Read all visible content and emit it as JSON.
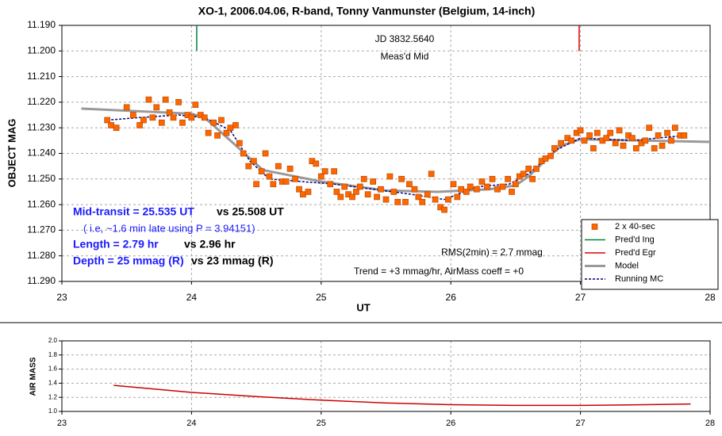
{
  "chart_data": [
    {
      "type": "scatter",
      "title": "XO-1, 2006.04.06, R-band, Tonny Vanmunster (Belgium, 14-inch)",
      "xlabel": "UT",
      "ylabel": "OBJECT MAG",
      "xlim": [
        23,
        28
      ],
      "ylim": [
        11.19,
        11.29
      ],
      "y_inverted": true,
      "xticks": [
        23,
        24,
        25,
        26,
        27,
        28
      ],
      "yticks": [
        {
          "value": 11.19,
          "label": "11.190"
        },
        {
          "value": 11.2,
          "label": "11.200"
        },
        {
          "value": 11.21,
          "label": "11.210"
        },
        {
          "value": 11.22,
          "label": "11.220"
        },
        {
          "value": 11.23,
          "label": "11.230"
        },
        {
          "value": 11.24,
          "label": "11.240"
        },
        {
          "value": 11.25,
          "label": "11.250"
        },
        {
          "value": 11.26,
          "label": "11.260"
        },
        {
          "value": 11.27,
          "label": "11.270"
        },
        {
          "value": 11.28,
          "label": "11.280"
        },
        {
          "value": 11.29,
          "label": "11.290"
        }
      ],
      "grid": true,
      "legend": "lower right",
      "annotations": [
        "JD 3832.5640",
        "Meas'd Mid",
        "Mid-transit = 25.535 UT",
        "vs 25.508 UT",
        "( i.e, ~1.6 min late using P = 3.94151)",
        "Length = 2.79 hr",
        "vs 2.96 hr",
        "Depth = 25 mmag (R)",
        "vs 23 mmag (R)",
        "RMS(2min) = 2.7 mmag",
        "Trend = +3 mmag/hr, AirMass coeff = +0"
      ],
      "series": [
        {
          "name": "2 x 40-sec",
          "kind": "points",
          "color": "#ff6600",
          "x": [
            23.35,
            23.38,
            23.42,
            23.5,
            23.55,
            23.6,
            23.63,
            23.67,
            23.7,
            23.73,
            23.77,
            23.8,
            23.83,
            23.86,
            23.9,
            23.93,
            23.97,
            24.0,
            24.03,
            24.07,
            24.1,
            24.13,
            24.17,
            24.2,
            24.23,
            24.27,
            24.3,
            24.34,
            24.37,
            24.4,
            24.44,
            24.48,
            24.5,
            24.54,
            24.57,
            24.6,
            24.63,
            24.67,
            24.7,
            24.73,
            24.76,
            24.8,
            24.83,
            24.86,
            24.9,
            24.93,
            24.96,
            25.0,
            25.03,
            25.07,
            25.1,
            25.12,
            25.15,
            25.18,
            25.21,
            25.24,
            25.27,
            25.3,
            25.33,
            25.36,
            25.4,
            25.43,
            25.46,
            25.5,
            25.53,
            25.56,
            25.59,
            25.62,
            25.65,
            25.68,
            25.72,
            25.75,
            25.78,
            25.82,
            25.85,
            25.88,
            25.92,
            25.95,
            25.98,
            26.02,
            26.05,
            26.08,
            26.12,
            26.15,
            26.2,
            26.24,
            26.28,
            26.32,
            26.36,
            26.4,
            26.44,
            26.47,
            26.5,
            26.53,
            26.56,
            26.6,
            26.63,
            26.66,
            26.7,
            26.73,
            26.77,
            26.8,
            26.85,
            26.9,
            26.93,
            26.97,
            27.0,
            27.03,
            27.07,
            27.1,
            27.13,
            27.17,
            27.2,
            27.23,
            27.27,
            27.3,
            27.33,
            27.37,
            27.4,
            27.43,
            27.47,
            27.5,
            27.53,
            27.57,
            27.6,
            27.63,
            27.67,
            27.7,
            27.73,
            27.77,
            27.8
          ],
          "values": [
            11.227,
            11.229,
            11.23,
            11.222,
            11.225,
            11.229,
            11.227,
            11.219,
            11.226,
            11.222,
            11.228,
            11.219,
            11.224,
            11.226,
            11.22,
            11.228,
            11.225,
            11.226,
            11.221,
            11.225,
            11.226,
            11.232,
            11.228,
            11.233,
            11.227,
            11.232,
            11.23,
            11.229,
            11.236,
            11.24,
            11.245,
            11.243,
            11.252,
            11.247,
            11.24,
            11.249,
            11.252,
            11.245,
            11.251,
            11.251,
            11.246,
            11.25,
            11.254,
            11.256,
            11.255,
            11.243,
            11.244,
            11.249,
            11.247,
            11.252,
            11.247,
            11.255,
            11.257,
            11.253,
            11.256,
            11.257,
            11.255,
            11.253,
            11.25,
            11.256,
            11.251,
            11.257,
            11.254,
            11.258,
            11.249,
            11.255,
            11.259,
            11.25,
            11.259,
            11.252,
            11.254,
            11.257,
            11.259,
            11.256,
            11.248,
            11.258,
            11.261,
            11.262,
            11.258,
            11.252,
            11.257,
            11.254,
            11.255,
            11.253,
            11.254,
            11.251,
            11.253,
            11.25,
            11.254,
            11.253,
            11.25,
            11.255,
            11.252,
            11.249,
            11.248,
            11.246,
            11.25,
            11.246,
            11.243,
            11.242,
            11.241,
            11.238,
            11.236,
            11.234,
            11.235,
            11.232,
            11.231,
            11.235,
            11.233,
            11.238,
            11.232,
            11.235,
            11.234,
            11.232,
            11.236,
            11.231,
            11.237,
            11.233,
            11.234,
            11.238,
            11.236,
            11.235,
            11.23,
            11.238,
            11.233,
            11.237,
            11.232,
            11.235,
            11.23,
            11.233,
            11.233
          ]
        },
        {
          "name": "Pred'd Ing",
          "kind": "line",
          "color": "#008040",
          "x": [
            24.04,
            24.04
          ],
          "values": [
            11.19,
            11.2
          ]
        },
        {
          "name": "Pred'd Egr",
          "kind": "line",
          "color": "#e00000",
          "x": [
            26.99,
            26.99
          ],
          "values": [
            11.19,
            11.2
          ]
        },
        {
          "name": "Model",
          "kind": "line",
          "color": "#999999",
          "width": 3,
          "x": [
            23.15,
            24.0,
            24.1,
            24.3,
            24.55,
            24.7,
            25.0,
            25.5,
            25.9,
            26.3,
            26.5,
            26.6,
            26.85,
            27.0,
            27.5,
            28.0
          ],
          "values": [
            11.2225,
            11.2245,
            11.226,
            11.235,
            11.2465,
            11.248,
            11.251,
            11.2545,
            11.255,
            11.254,
            11.2525,
            11.249,
            11.237,
            11.2345,
            11.235,
            11.2355
          ]
        },
        {
          "name": "Running MC",
          "kind": "line",
          "color": "#000080",
          "dash": true,
          "x": [
            23.35,
            23.6,
            23.9,
            24.1,
            24.3,
            24.45,
            24.6,
            24.85,
            25.1,
            25.4,
            25.7,
            25.95,
            26.2,
            26.45,
            26.6,
            26.8,
            27.0,
            27.4,
            27.8
          ],
          "values": [
            11.227,
            11.226,
            11.225,
            11.226,
            11.231,
            11.243,
            11.25,
            11.251,
            11.252,
            11.254,
            11.256,
            11.258,
            11.253,
            11.252,
            11.248,
            11.239,
            11.234,
            11.235,
            11.233
          ]
        }
      ]
    },
    {
      "type": "line",
      "ylabel": "AIR MASS",
      "xlim": [
        23,
        28
      ],
      "ylim": [
        1.0,
        2.0
      ],
      "xticks": [
        23,
        24,
        25,
        26,
        27,
        28
      ],
      "yticks": [
        {
          "value": 1.0,
          "label": "1.0"
        },
        1.2,
        1.4,
        1.6,
        1.8,
        {
          "value": 2.0,
          "label": "2.0"
        }
      ],
      "grid": true,
      "series": [
        {
          "kind": "line",
          "color": "#cc0000",
          "x": [
            23.4,
            24.0,
            24.5,
            25.0,
            25.5,
            26.0,
            26.5,
            27.0,
            27.5,
            27.85
          ],
          "values": [
            1.37,
            1.27,
            1.21,
            1.16,
            1.12,
            1.095,
            1.085,
            1.085,
            1.095,
            1.105
          ]
        }
      ]
    }
  ]
}
